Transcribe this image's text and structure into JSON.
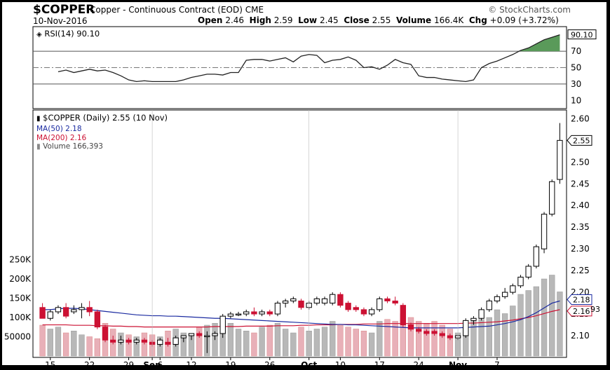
{
  "header": {
    "symbol": "$COPPER",
    "description": "Copper - Continuous Contract (EOD)",
    "exchange": "CME",
    "copyright": "© StockCharts.com",
    "date": "10-Nov-2016",
    "open_label": "Open",
    "open": "2.46",
    "high_label": "High",
    "high": "2.59",
    "low_label": "Low",
    "low": "2.45",
    "close_label": "Close",
    "close": "2.55",
    "volume_label": "Volume",
    "volume": "166.4K",
    "chg_label": "Chg",
    "chg": "+0.09 (+3.72%)"
  },
  "colors": {
    "up": "#000000",
    "down": "#cc1133",
    "ma50": "#1a2aa0",
    "ma200": "#cc1133",
    "volume": "#b0b0b0",
    "rsi_fill": "#5a9a5a"
  },
  "rsi_panel": {
    "label": "RSI(14) 90.10",
    "last_value": "90.10",
    "ticks": [
      "70",
      "50",
      "30",
      "10"
    ],
    "ylim": [
      0,
      100
    ],
    "values": [
      45,
      47,
      44,
      46,
      48,
      46,
      47,
      44,
      40,
      35,
      33,
      34,
      33,
      33,
      33,
      33,
      35,
      38,
      40,
      42,
      42,
      41,
      44,
      44,
      59,
      60,
      60,
      58,
      60,
      62,
      57,
      64,
      66,
      65,
      56,
      59,
      60,
      63,
      59,
      50,
      51,
      48,
      53,
      60,
      56,
      54,
      40,
      38,
      38,
      36,
      35,
      34,
      33,
      35,
      50,
      55,
      58,
      62,
      66,
      71,
      74,
      79,
      84,
      87,
      90.1
    ]
  },
  "price_panel": {
    "legend": {
      "series": "$COPPER (Daily) 2.55 (10 Nov)",
      "ma50": "MA(50) 2.18",
      "ma200": "MA(200) 2.16",
      "volume": "Volume 166,393"
    },
    "price_ticks": [
      "2.60",
      "2.50",
      "2.45",
      "2.40",
      "2.35",
      "2.30",
      "2.25",
      "2.20",
      "2.15",
      "2.10"
    ],
    "volume_ticks": [
      "250K",
      "200K",
      "150K",
      "100K",
      "50000"
    ],
    "last_price_tag": "2.55",
    "ma50_tag": "2.18",
    "ma200_tag": "2.16",
    "volume_tag": "93",
    "x_ticks": [
      "15",
      "22",
      "29",
      "Sep",
      "6",
      "12",
      "19",
      "26",
      "Oct",
      "10",
      "17",
      "24",
      "Nov",
      "7"
    ]
  },
  "chart_data": {
    "type": "candlestick",
    "ylim": [
      2.05,
      2.62
    ],
    "volume_ylim": [
      0,
      300000
    ],
    "candles": [
      {
        "o": 2.165,
        "h": 2.175,
        "l": 2.145,
        "c": 2.14,
        "v": 80000
      },
      {
        "o": 2.14,
        "h": 2.16,
        "l": 2.135,
        "c": 2.155,
        "v": 70000
      },
      {
        "o": 2.155,
        "h": 2.17,
        "l": 2.15,
        "c": 2.165,
        "v": 75000
      },
      {
        "o": 2.165,
        "h": 2.175,
        "l": 2.14,
        "c": 2.145,
        "v": 60000
      },
      {
        "o": 2.155,
        "h": 2.17,
        "l": 2.15,
        "c": 2.16,
        "v": 65000
      },
      {
        "o": 2.16,
        "h": 2.175,
        "l": 2.14,
        "c": 2.165,
        "v": 55000
      },
      {
        "o": 2.165,
        "h": 2.18,
        "l": 2.145,
        "c": 2.155,
        "v": 50000
      },
      {
        "o": 2.155,
        "h": 2.16,
        "l": 2.115,
        "c": 2.12,
        "v": 45000
      },
      {
        "o": 2.12,
        "h": 2.125,
        "l": 2.085,
        "c": 2.09,
        "v": 85000
      },
      {
        "o": 2.09,
        "h": 2.1,
        "l": 2.08,
        "c": 2.085,
        "v": 70000
      },
      {
        "o": 2.085,
        "h": 2.1,
        "l": 2.08,
        "c": 2.09,
        "v": 60000
      },
      {
        "o": 2.09,
        "h": 2.095,
        "l": 2.08,
        "c": 2.085,
        "v": 55000
      },
      {
        "o": 2.085,
        "h": 2.095,
        "l": 2.08,
        "c": 2.09,
        "v": 50000
      },
      {
        "o": 2.09,
        "h": 2.095,
        "l": 2.08,
        "c": 2.085,
        "v": 60000
      },
      {
        "o": 2.085,
        "h": 2.09,
        "l": 2.075,
        "c": 2.08,
        "v": 55000
      },
      {
        "o": 2.08,
        "h": 2.095,
        "l": 2.075,
        "c": 2.09,
        "v": 50000
      },
      {
        "o": 2.085,
        "h": 2.095,
        "l": 2.075,
        "c": 2.08,
        "v": 65000
      },
      {
        "o": 2.08,
        "h": 2.1,
        "l": 2.075,
        "c": 2.095,
        "v": 70000
      },
      {
        "o": 2.095,
        "h": 2.1,
        "l": 2.085,
        "c": 2.1,
        "v": 60000
      },
      {
        "o": 2.1,
        "h": 2.105,
        "l": 2.09,
        "c": 2.105,
        "v": 55000
      },
      {
        "o": 2.105,
        "h": 2.11,
        "l": 2.095,
        "c": 2.1,
        "v": 75000
      },
      {
        "o": 2.1,
        "h": 2.11,
        "l": 2.06,
        "c": 2.1,
        "v": 80000
      },
      {
        "o": 2.1,
        "h": 2.11,
        "l": 2.09,
        "c": 2.105,
        "v": 85000
      },
      {
        "o": 2.105,
        "h": 2.15,
        "l": 2.095,
        "c": 2.145,
        "v": 90000
      },
      {
        "o": 2.145,
        "h": 2.155,
        "l": 2.14,
        "c": 2.15,
        "v": 85000
      },
      {
        "o": 2.15,
        "h": 2.155,
        "l": 2.145,
        "c": 2.15,
        "v": 70000
      },
      {
        "o": 2.15,
        "h": 2.16,
        "l": 2.145,
        "c": 2.155,
        "v": 65000
      },
      {
        "o": 2.155,
        "h": 2.165,
        "l": 2.145,
        "c": 2.15,
        "v": 60000
      },
      {
        "o": 2.15,
        "h": 2.16,
        "l": 2.145,
        "c": 2.155,
        "v": 75000
      },
      {
        "o": 2.155,
        "h": 2.16,
        "l": 2.145,
        "c": 2.15,
        "v": 80000
      },
      {
        "o": 2.15,
        "h": 2.18,
        "l": 2.145,
        "c": 2.175,
        "v": 85000
      },
      {
        "o": 2.175,
        "h": 2.185,
        "l": 2.165,
        "c": 2.18,
        "v": 70000
      },
      {
        "o": 2.18,
        "h": 2.19,
        "l": 2.175,
        "c": 2.185,
        "v": 60000
      },
      {
        "o": 2.18,
        "h": 2.185,
        "l": 2.16,
        "c": 2.165,
        "v": 75000
      },
      {
        "o": 2.165,
        "h": 2.18,
        "l": 2.16,
        "c": 2.175,
        "v": 65000
      },
      {
        "o": 2.175,
        "h": 2.19,
        "l": 2.17,
        "c": 2.185,
        "v": 70000
      },
      {
        "o": 2.175,
        "h": 2.19,
        "l": 2.17,
        "c": 2.185,
        "v": 75000
      },
      {
        "o": 2.175,
        "h": 2.2,
        "l": 2.17,
        "c": 2.195,
        "v": 90000
      },
      {
        "o": 2.195,
        "h": 2.2,
        "l": 2.165,
        "c": 2.17,
        "v": 80000
      },
      {
        "o": 2.175,
        "h": 2.18,
        "l": 2.155,
        "c": 2.16,
        "v": 75000
      },
      {
        "o": 2.165,
        "h": 2.17,
        "l": 2.155,
        "c": 2.16,
        "v": 70000
      },
      {
        "o": 2.16,
        "h": 2.165,
        "l": 2.145,
        "c": 2.15,
        "v": 65000
      },
      {
        "o": 2.15,
        "h": 2.165,
        "l": 2.145,
        "c": 2.16,
        "v": 60000
      },
      {
        "o": 2.16,
        "h": 2.19,
        "l": 2.155,
        "c": 2.185,
        "v": 90000
      },
      {
        "o": 2.185,
        "h": 2.19,
        "l": 2.175,
        "c": 2.18,
        "v": 95000
      },
      {
        "o": 2.18,
        "h": 2.19,
        "l": 2.17,
        "c": 2.175,
        "v": 90000
      },
      {
        "o": 2.17,
        "h": 2.175,
        "l": 2.12,
        "c": 2.125,
        "v": 110000
      },
      {
        "o": 2.125,
        "h": 2.13,
        "l": 2.11,
        "c": 2.115,
        "v": 100000
      },
      {
        "o": 2.115,
        "h": 2.12,
        "l": 2.105,
        "c": 2.11,
        "v": 90000
      },
      {
        "o": 2.11,
        "h": 2.115,
        "l": 2.1,
        "c": 2.105,
        "v": 85000
      },
      {
        "o": 2.11,
        "h": 2.115,
        "l": 2.1,
        "c": 2.105,
        "v": 90000
      },
      {
        "o": 2.105,
        "h": 2.11,
        "l": 2.095,
        "c": 2.1,
        "v": 80000
      },
      {
        "o": 2.1,
        "h": 2.105,
        "l": 2.09,
        "c": 2.095,
        "v": 70000
      },
      {
        "o": 2.095,
        "h": 2.1,
        "l": 2.09,
        "c": 2.1,
        "v": 60000
      },
      {
        "o": 2.1,
        "h": 2.14,
        "l": 2.095,
        "c": 2.135,
        "v": 75000
      },
      {
        "o": 2.135,
        "h": 2.145,
        "l": 2.125,
        "c": 2.14,
        "v": 90000
      },
      {
        "o": 2.14,
        "h": 2.165,
        "l": 2.135,
        "c": 2.16,
        "v": 95000
      },
      {
        "o": 2.16,
        "h": 2.185,
        "l": 2.155,
        "c": 2.18,
        "v": 100000
      },
      {
        "o": 2.18,
        "h": 2.195,
        "l": 2.175,
        "c": 2.19,
        "v": 120000
      },
      {
        "o": 2.19,
        "h": 2.21,
        "l": 2.185,
        "c": 2.2,
        "v": 110000
      },
      {
        "o": 2.2,
        "h": 2.22,
        "l": 2.195,
        "c": 2.215,
        "v": 130000
      },
      {
        "o": 2.215,
        "h": 2.24,
        "l": 2.21,
        "c": 2.235,
        "v": 160000
      },
      {
        "o": 2.235,
        "h": 2.265,
        "l": 2.23,
        "c": 2.26,
        "v": 170000
      },
      {
        "o": 2.26,
        "h": 2.31,
        "l": 2.255,
        "c": 2.305,
        "v": 180000
      },
      {
        "o": 2.3,
        "h": 2.385,
        "l": 2.29,
        "c": 2.38,
        "v": 200000
      },
      {
        "o": 2.38,
        "h": 2.46,
        "l": 2.375,
        "c": 2.455,
        "v": 210000
      },
      {
        "o": 2.46,
        "h": 2.59,
        "l": 2.45,
        "c": 2.55,
        "v": 166393
      }
    ],
    "ma50": [
      2.16,
      2.16,
      2.162,
      2.163,
      2.163,
      2.162,
      2.16,
      2.158,
      2.156,
      2.154,
      2.152,
      2.15,
      2.148,
      2.147,
      2.146,
      2.146,
      2.145,
      2.145,
      2.144,
      2.143,
      2.142,
      2.141,
      2.14,
      2.14,
      2.139,
      2.138,
      2.137,
      2.136,
      2.135,
      2.134,
      2.133,
      2.132,
      2.131,
      2.13,
      2.129,
      2.128,
      2.127,
      2.126,
      2.126,
      2.125,
      2.125,
      2.124,
      2.123,
      2.122,
      2.121,
      2.12,
      2.119,
      2.118,
      2.118,
      2.118,
      2.118,
      2.118,
      2.118,
      2.118,
      2.119,
      2.12,
      2.121,
      2.122,
      2.125,
      2.128,
      2.132,
      2.137,
      2.144,
      2.153,
      2.164,
      2.175,
      2.18
    ],
    "ma200": [
      2.125,
      2.125,
      2.125,
      2.125,
      2.124,
      2.124,
      2.124,
      2.123,
      2.123,
      2.122,
      2.122,
      2.121,
      2.121,
      2.12,
      2.12,
      2.12,
      2.12,
      2.12,
      2.12,
      2.12,
      2.12,
      2.12,
      2.121,
      2.121,
      2.121,
      2.121,
      2.122,
      2.122,
      2.122,
      2.122,
      2.123,
      2.123,
      2.123,
      2.124,
      2.124,
      2.125,
      2.125,
      2.125,
      2.126,
      2.126,
      2.126,
      2.127,
      2.127,
      2.127,
      2.128,
      2.128,
      2.128,
      2.128,
      2.128,
      2.128,
      2.128,
      2.128,
      2.128,
      2.128,
      2.129,
      2.129,
      2.13,
      2.131,
      2.132,
      2.134,
      2.136,
      2.139,
      2.142,
      2.146,
      2.151,
      2.156,
      2.16
    ]
  }
}
